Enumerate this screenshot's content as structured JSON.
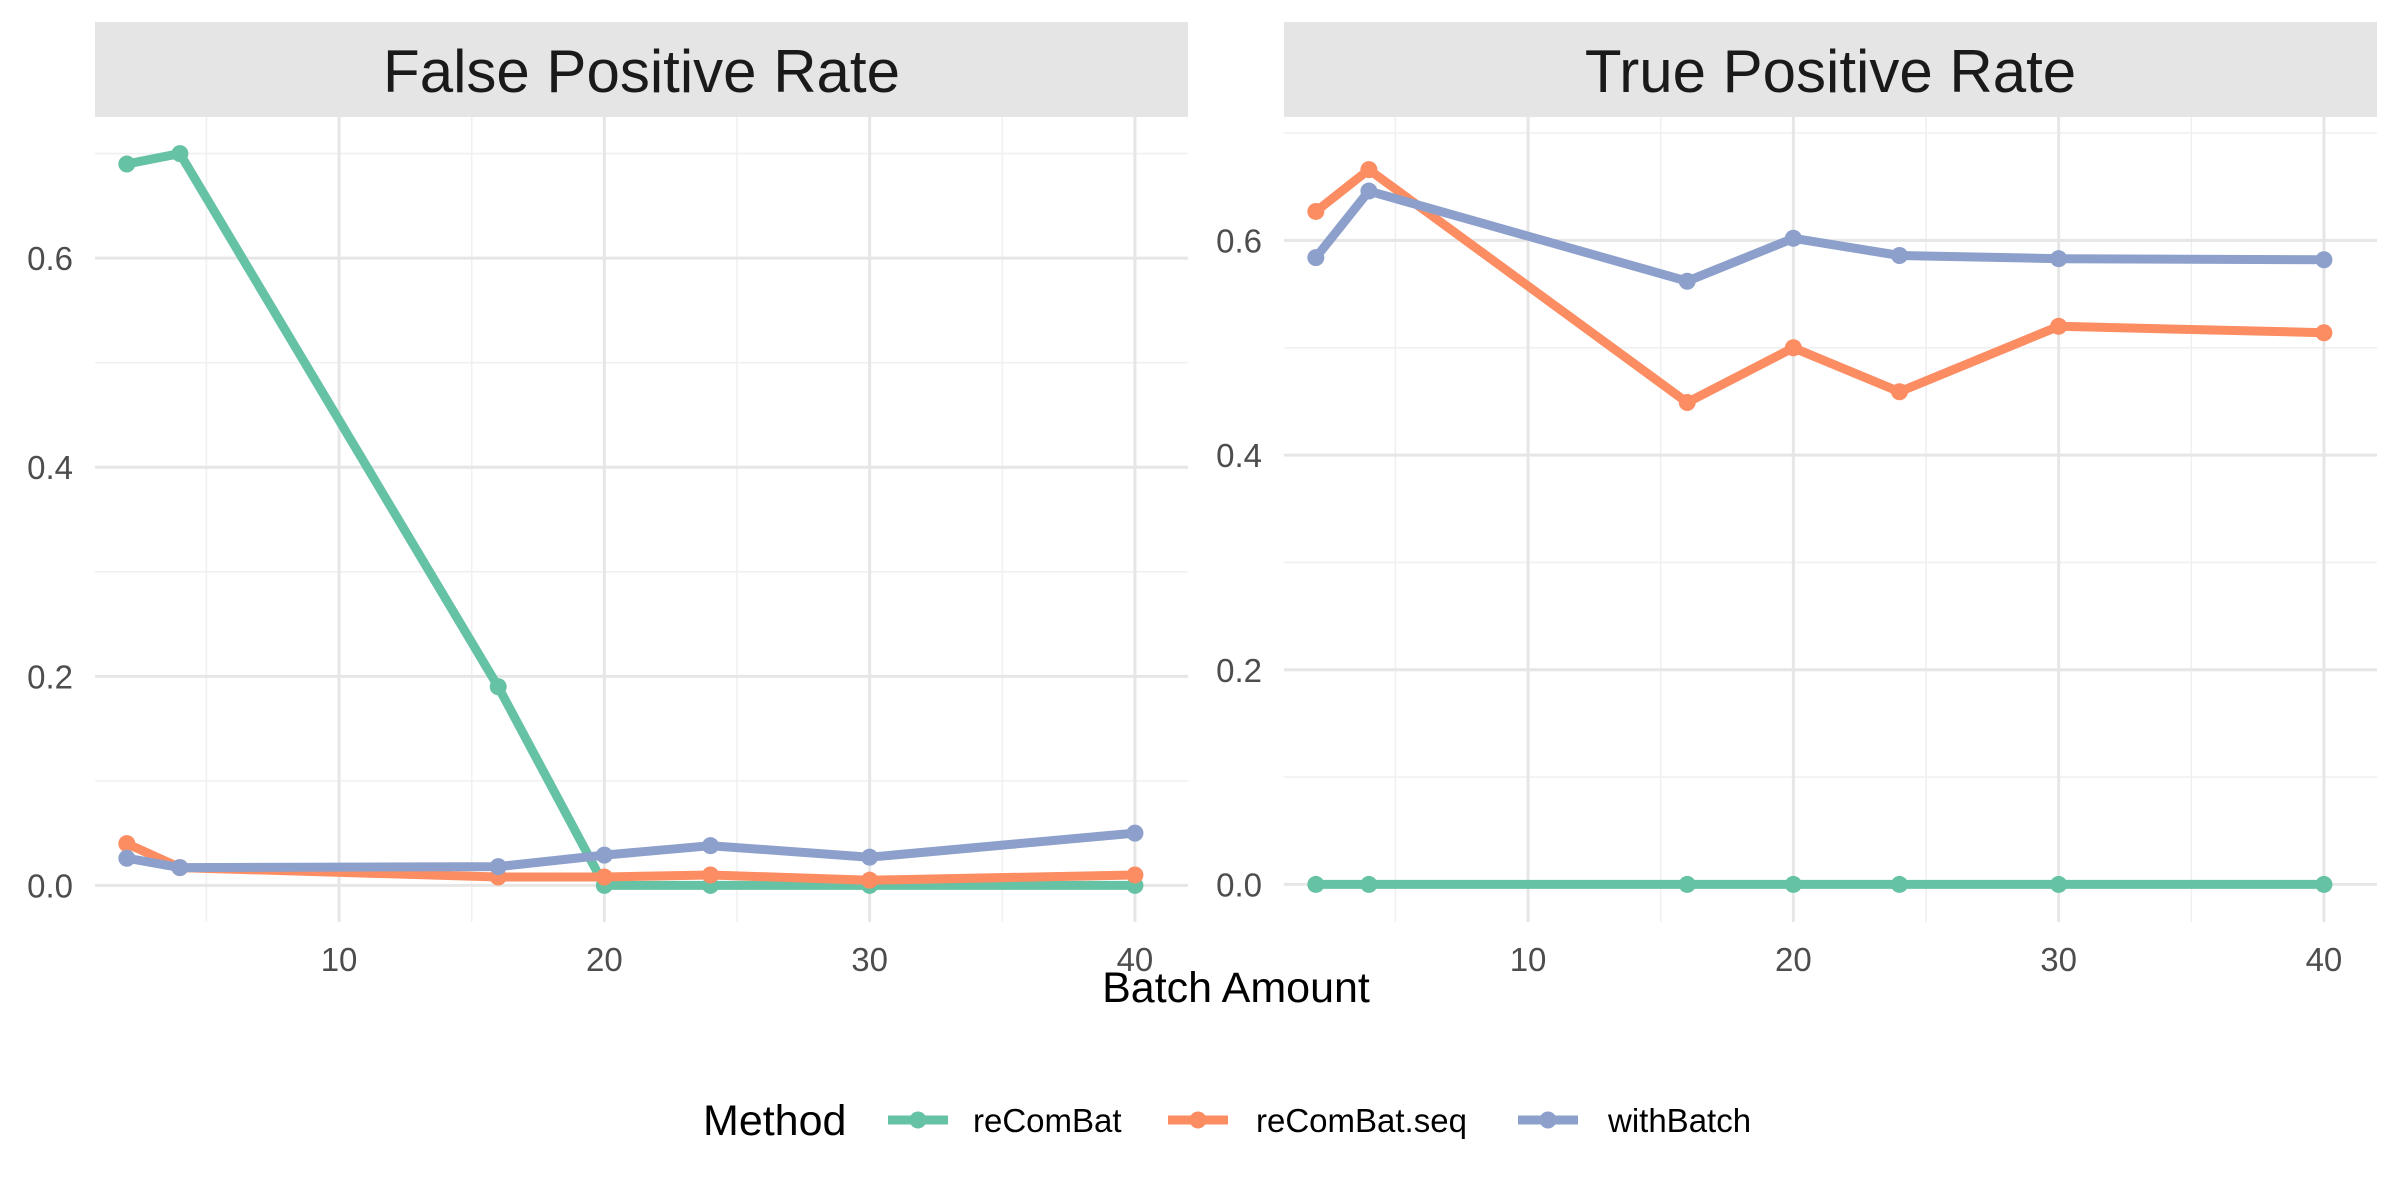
{
  "chart_data": {
    "type": "line",
    "xlabel": "Batch Amount",
    "legend": {
      "title": "Method",
      "position": "bottom"
    },
    "series_styles": [
      {
        "name": "reComBat",
        "color": "#66C2A5"
      },
      {
        "name": "reComBat.seq",
        "color": "#FC8D62"
      },
      {
        "name": "withBatch",
        "color": "#8DA0CB"
      }
    ],
    "grid": true,
    "xlim": [
      0.8,
      42.0
    ],
    "x_ticks": [
      10,
      20,
      30,
      40
    ],
    "x_tick_labels": [
      "10",
      "20",
      "30",
      "40"
    ],
    "panels": [
      {
        "title": "False Positive Rate",
        "ylim": [
          -0.035,
          0.735
        ],
        "y_ticks": [
          0.0,
          0.2,
          0.4,
          0.6
        ],
        "y_tick_labels": [
          "0.0",
          "0.2",
          "0.4",
          "0.6"
        ],
        "series": [
          {
            "name": "reComBat",
            "x": [
              2,
              4,
              16,
              20,
              24,
              30,
              40
            ],
            "y": [
              0.69,
              0.7,
              0.19,
              0.0,
              0.0,
              0.0,
              0.0
            ]
          },
          {
            "name": "reComBat.seq",
            "x": [
              2,
              4,
              16,
              20,
              24,
              30,
              40
            ],
            "y": [
              0.04,
              0.017,
              0.008,
              0.008,
              0.01,
              0.005,
              0.01
            ]
          },
          {
            "name": "withBatch",
            "x": [
              2,
              4,
              16,
              20,
              24,
              30,
              40
            ],
            "y": [
              0.026,
              0.017,
              0.018,
              0.029,
              0.038,
              0.027,
              0.05
            ]
          }
        ]
      },
      {
        "title": "True Positive Rate",
        "ylim": [
          -0.035,
          0.715
        ],
        "y_ticks": [
          0.0,
          0.2,
          0.4,
          0.6
        ],
        "y_tick_labels": [
          "0.0",
          "0.2",
          "0.4",
          "0.6"
        ],
        "series": [
          {
            "name": "reComBat",
            "x": [
              2,
              4,
              16,
              20,
              24,
              30,
              40
            ],
            "y": [
              0.0,
              0.0,
              0.0,
              0.0,
              0.0,
              0.0,
              0.0
            ]
          },
          {
            "name": "reComBat.seq",
            "x": [
              2,
              4,
              16,
              20,
              24,
              30,
              40
            ],
            "y": [
              0.627,
              0.666,
              0.449,
              0.5,
              0.459,
              0.52,
              0.514
            ]
          },
          {
            "name": "withBatch",
            "x": [
              2,
              4,
              16,
              20,
              24,
              30,
              40
            ],
            "y": [
              0.584,
              0.646,
              0.562,
              0.602,
              0.586,
              0.583,
              0.582
            ]
          }
        ]
      }
    ]
  }
}
